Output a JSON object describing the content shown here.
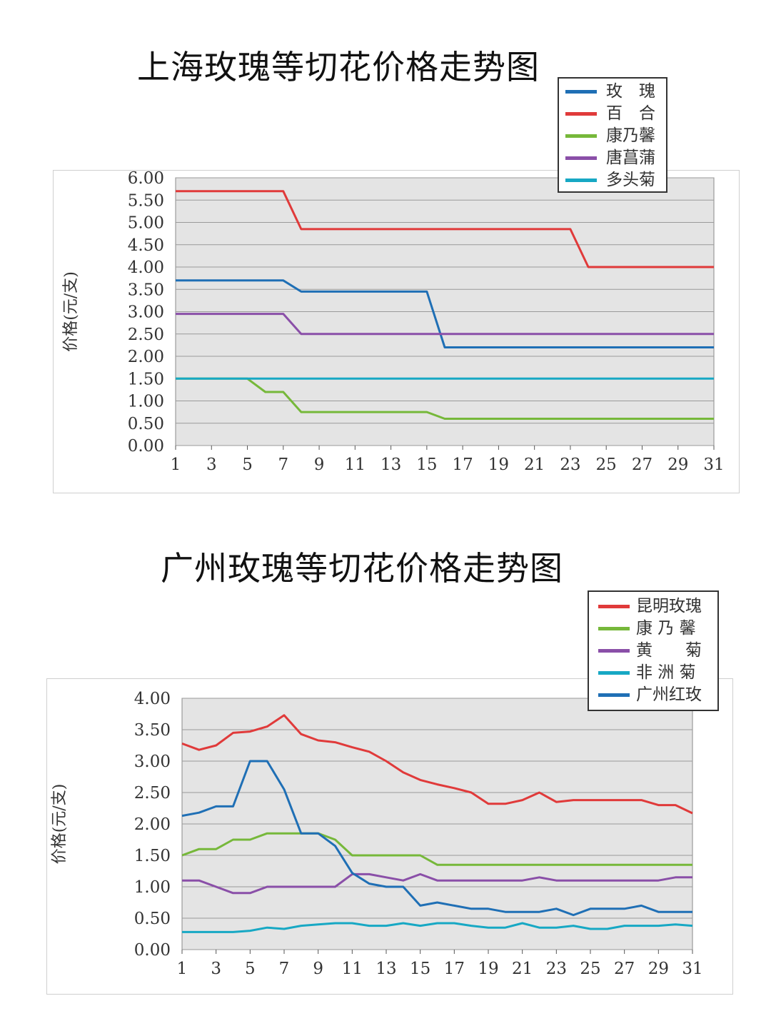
{
  "chart_data": [
    {
      "type": "line",
      "title": "上海玫瑰等切花价格走势图",
      "ylabel": "价格(元/支)",
      "xlabel": "",
      "ylim": [
        0,
        6
      ],
      "yticks": [
        "0.00",
        "0.50",
        "1.00",
        "1.50",
        "2.00",
        "2.50",
        "3.00",
        "3.50",
        "4.00",
        "4.50",
        "5.00",
        "5.50",
        "6.00"
      ],
      "xticks": [
        "1",
        "3",
        "5",
        "7",
        "9",
        "11",
        "13",
        "15",
        "17",
        "19",
        "21",
        "23",
        "25",
        "27",
        "29",
        "31"
      ],
      "x": [
        1,
        2,
        3,
        4,
        5,
        6,
        7,
        8,
        9,
        10,
        11,
        12,
        13,
        14,
        15,
        16,
        17,
        18,
        19,
        20,
        21,
        22,
        23,
        24,
        25,
        26,
        27,
        28,
        29,
        30,
        31
      ],
      "grid": true,
      "legend_position": "top-right",
      "series": [
        {
          "name": "玫　瑰",
          "color": "#1f6fb5",
          "values": [
            3.7,
            3.7,
            3.7,
            3.7,
            3.7,
            3.7,
            3.7,
            3.45,
            3.45,
            3.45,
            3.45,
            3.45,
            3.45,
            3.45,
            3.45,
            2.2,
            2.2,
            2.2,
            2.2,
            2.2,
            2.2,
            2.2,
            2.2,
            2.2,
            2.2,
            2.2,
            2.2,
            2.2,
            2.2,
            2.2,
            2.2
          ]
        },
        {
          "name": "百　合",
          "color": "#e03a3a",
          "values": [
            5.7,
            5.7,
            5.7,
            5.7,
            5.7,
            5.7,
            5.7,
            4.85,
            4.85,
            4.85,
            4.85,
            4.85,
            4.85,
            4.85,
            4.85,
            4.85,
            4.85,
            4.85,
            4.85,
            4.85,
            4.85,
            4.85,
            4.85,
            4.0,
            4.0,
            4.0,
            4.0,
            4.0,
            4.0,
            4.0,
            4.0
          ]
        },
        {
          "name": "康乃馨",
          "color": "#76b83a",
          "values": [
            1.5,
            1.5,
            1.5,
            1.5,
            1.5,
            1.2,
            1.2,
            0.75,
            0.75,
            0.75,
            0.75,
            0.75,
            0.75,
            0.75,
            0.75,
            0.6,
            0.6,
            0.6,
            0.6,
            0.6,
            0.6,
            0.6,
            0.6,
            0.6,
            0.6,
            0.6,
            0.6,
            0.6,
            0.6,
            0.6,
            0.6
          ]
        },
        {
          "name": "唐菖蒲",
          "color": "#8a4fa8",
          "values": [
            2.95,
            2.95,
            2.95,
            2.95,
            2.95,
            2.95,
            2.95,
            2.5,
            2.5,
            2.5,
            2.5,
            2.5,
            2.5,
            2.5,
            2.5,
            2.5,
            2.5,
            2.5,
            2.5,
            2.5,
            2.5,
            2.5,
            2.5,
            2.5,
            2.5,
            2.5,
            2.5,
            2.5,
            2.5,
            2.5,
            2.5
          ]
        },
        {
          "name": "多头菊",
          "color": "#17a8c4",
          "values": [
            1.5,
            1.5,
            1.5,
            1.5,
            1.5,
            1.5,
            1.5,
            1.5,
            1.5,
            1.5,
            1.5,
            1.5,
            1.5,
            1.5,
            1.5,
            1.5,
            1.5,
            1.5,
            1.5,
            1.5,
            1.5,
            1.5,
            1.5,
            1.5,
            1.5,
            1.5,
            1.5,
            1.5,
            1.5,
            1.5,
            1.5
          ]
        }
      ]
    },
    {
      "type": "line",
      "title": "广州玫瑰等切花价格走势图",
      "ylabel": "价格(元/支)",
      "xlabel": "",
      "ylim": [
        0,
        4
      ],
      "yticks": [
        "0.00",
        "0.50",
        "1.00",
        "1.50",
        "2.00",
        "2.50",
        "3.00",
        "3.50",
        "4.00"
      ],
      "xticks": [
        "1",
        "3",
        "5",
        "7",
        "9",
        "11",
        "13",
        "15",
        "17",
        "19",
        "21",
        "23",
        "25",
        "27",
        "29",
        "31"
      ],
      "x": [
        1,
        2,
        3,
        4,
        5,
        6,
        7,
        8,
        9,
        10,
        11,
        12,
        13,
        14,
        15,
        16,
        17,
        18,
        19,
        20,
        21,
        22,
        23,
        24,
        25,
        26,
        27,
        28,
        29,
        30,
        31
      ],
      "grid": true,
      "legend_position": "top-right",
      "series": [
        {
          "name": "昆明玫瑰",
          "color": "#e03a3a",
          "values": [
            3.28,
            3.18,
            3.25,
            3.45,
            3.47,
            3.55,
            3.73,
            3.43,
            3.33,
            3.3,
            3.22,
            3.15,
            3.0,
            2.82,
            2.7,
            2.63,
            2.57,
            2.5,
            2.32,
            2.32,
            2.38,
            2.5,
            2.35,
            2.38,
            2.38,
            2.38,
            2.38,
            2.38,
            2.3,
            2.3,
            2.17
          ]
        },
        {
          "name": "康 乃 馨",
          "color": "#76b83a",
          "values": [
            1.5,
            1.6,
            1.6,
            1.75,
            1.75,
            1.85,
            1.85,
            1.85,
            1.85,
            1.75,
            1.5,
            1.5,
            1.5,
            1.5,
            1.5,
            1.35,
            1.35,
            1.35,
            1.35,
            1.35,
            1.35,
            1.35,
            1.35,
            1.35,
            1.35,
            1.35,
            1.35,
            1.35,
            1.35,
            1.35,
            1.35
          ]
        },
        {
          "name": "黄　　菊",
          "color": "#8a4fa8",
          "values": [
            1.1,
            1.1,
            1.0,
            0.9,
            0.9,
            1.0,
            1.0,
            1.0,
            1.0,
            1.0,
            1.2,
            1.2,
            1.15,
            1.1,
            1.2,
            1.1,
            1.1,
            1.1,
            1.1,
            1.1,
            1.1,
            1.15,
            1.1,
            1.1,
            1.1,
            1.1,
            1.1,
            1.1,
            1.1,
            1.15,
            1.15
          ]
        },
        {
          "name": "非 洲 菊",
          "color": "#17a8c4",
          "values": [
            0.28,
            0.28,
            0.28,
            0.28,
            0.3,
            0.35,
            0.33,
            0.38,
            0.4,
            0.42,
            0.42,
            0.38,
            0.38,
            0.42,
            0.38,
            0.42,
            0.42,
            0.38,
            0.35,
            0.35,
            0.42,
            0.35,
            0.35,
            0.38,
            0.33,
            0.33,
            0.38,
            0.38,
            0.38,
            0.4,
            0.38
          ]
        },
        {
          "name": "广州红玫",
          "color": "#1f6fb5",
          "values": [
            2.13,
            2.18,
            2.28,
            2.28,
            3.0,
            3.0,
            2.55,
            1.85,
            1.85,
            1.65,
            1.22,
            1.05,
            1.0,
            1.0,
            0.7,
            0.75,
            0.7,
            0.65,
            0.65,
            0.6,
            0.6,
            0.6,
            0.65,
            0.55,
            0.65,
            0.65,
            0.65,
            0.7,
            0.6,
            0.6,
            0.6
          ]
        }
      ]
    }
  ]
}
